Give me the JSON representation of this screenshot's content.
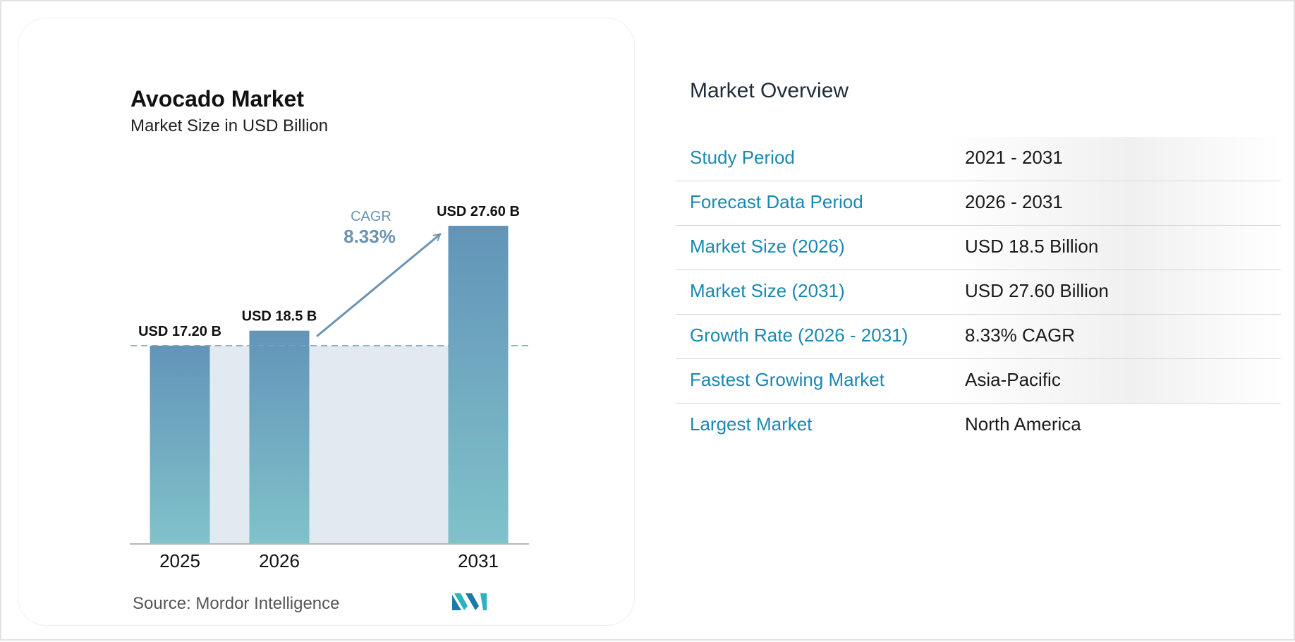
{
  "chart": {
    "title": "Avocado Market",
    "subtitle": "Market Size in USD Billion",
    "source_label": "Source:",
    "source_name": "Mordor Intelligence",
    "cagr_label": "CAGR",
    "cagr_value": "8.33%"
  },
  "chart_data": {
    "type": "bar",
    "title": "Avocado Market",
    "subtitle": "Market Size in USD Billion",
    "categories": [
      "2025",
      "2026",
      "2031"
    ],
    "values": [
      17.2,
      18.5,
      27.6
    ],
    "data_labels": [
      "USD 17.20 B",
      "USD 18.5 B",
      "USD 27.60 B"
    ],
    "annotation": {
      "label": "CAGR",
      "value": "8.33%",
      "from": "2026",
      "to": "2031"
    },
    "xlabel": "",
    "ylabel": "",
    "ylim": [
      0,
      27.6
    ],
    "grid": false,
    "colors": {
      "bar_top": "#6294b8",
      "bar_bottom": "#80c2ca",
      "shade": "#e1e9f1",
      "arrow": "#6b93b3",
      "baseline_dash": "#7aa1be"
    }
  },
  "overview": {
    "title": "Market Overview",
    "rows": [
      {
        "label": "Study Period",
        "value": "2021 - 2031"
      },
      {
        "label": "Forecast Data Period",
        "value": "2026 - 2031"
      },
      {
        "label": "Market Size (2026)",
        "value": "USD 18.5 Billion"
      },
      {
        "label": "Market Size (2031)",
        "value": "USD 27.60 Billion"
      },
      {
        "label": "Growth Rate (2026 - 2031)",
        "value": "8.33% CAGR"
      },
      {
        "label": "Fastest Growing Market",
        "value": "Asia-Pacific"
      },
      {
        "label": "Largest Market",
        "value": "North America"
      }
    ]
  },
  "colors": {
    "label_blue": "#1a88b2",
    "logo_teal": "#2bb3c0",
    "logo_blue": "#1c7aa8"
  },
  "icons": {
    "logo": "mordor-intelligence-logo"
  }
}
